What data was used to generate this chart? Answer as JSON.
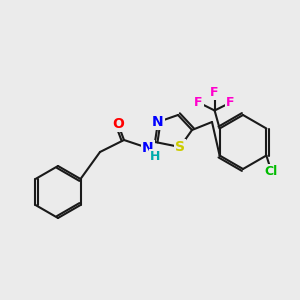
{
  "bg_color": "#ebebeb",
  "bond_color": "#1a1a1a",
  "atom_colors": {
    "O": "#ff0000",
    "N": "#0000ff",
    "S": "#cccc00",
    "Cl": "#00bb00",
    "F": "#ff00cc",
    "C": "#1a1a1a",
    "H": "#00aaaa"
  },
  "font_size": 9,
  "figsize": [
    3.0,
    3.0
  ],
  "dpi": 100
}
